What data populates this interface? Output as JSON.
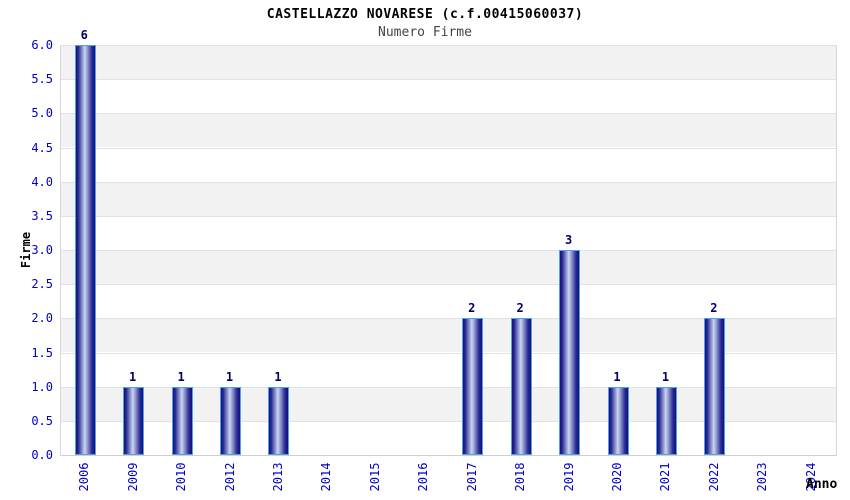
{
  "header": {
    "title": "CASTELLAZZO NOVARESE (c.f.00415060037)",
    "subtitle": "Numero Firme"
  },
  "chart_data": {
    "type": "bar",
    "title": "CASTELLAZZO NOVARESE (c.f.00415060037)",
    "subtitle": "Numero Firme",
    "xlabel": "Anno",
    "ylabel": "Firme",
    "categories": [
      "2006",
      "2009",
      "2010",
      "2012",
      "2013",
      "2014",
      "2015",
      "2016",
      "2017",
      "2018",
      "2019",
      "2020",
      "2021",
      "2022",
      "2023",
      "2024"
    ],
    "values": [
      6,
      1,
      1,
      1,
      1,
      0,
      0,
      0,
      2,
      2,
      3,
      1,
      1,
      2,
      0,
      0
    ],
    "ylim": [
      0,
      6
    ],
    "ytick_step": 0.5,
    "ytick_labels": [
      "0.0",
      "0.5",
      "1.0",
      "1.5",
      "2.0",
      "2.5",
      "3.0",
      "3.5",
      "4.0",
      "4.5",
      "5.0",
      "5.5",
      "6.0"
    ],
    "grid": "horizontal-bands-alternating",
    "legend_position": "none",
    "colors": {
      "bar_dark": "#10107a",
      "bar_light": "#cdd4ef",
      "bar_outline": "#4fa3e8",
      "tick_label": "#0000cd",
      "value_label": "#000066",
      "band_gray": "#f2f2f2",
      "band_white": "#ffffff",
      "gridline": "#e2e2e2",
      "title": "#000000",
      "subtitle": "#454545"
    }
  }
}
